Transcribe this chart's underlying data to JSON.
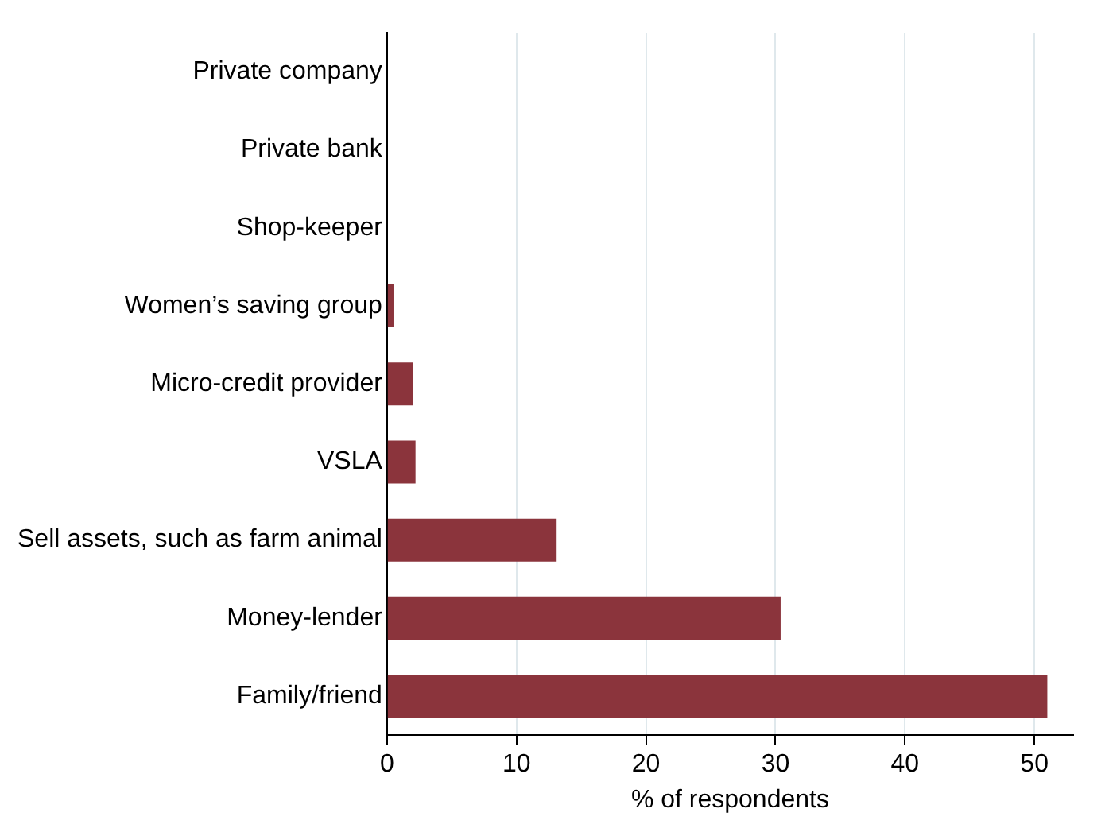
{
  "chart_data": {
    "type": "bar",
    "orientation": "horizontal",
    "xlabel": "% of respondents",
    "categories": [
      "Private company",
      "Private bank",
      "Shop-keeper",
      "Women’s saving group",
      "Micro-credit provider",
      "VSLA",
      "Sell assets, such as farm animal",
      "Money-lender",
      "Family/friend"
    ],
    "values": [
      0,
      0,
      0,
      0.5,
      2.0,
      2.2,
      13.1,
      30.4,
      51.0
    ],
    "color": "#8b343c",
    "xlim": [
      0,
      53
    ],
    "xticks": [
      0,
      10,
      20,
      30,
      40,
      50
    ],
    "grid": "x",
    "legend": false
  }
}
